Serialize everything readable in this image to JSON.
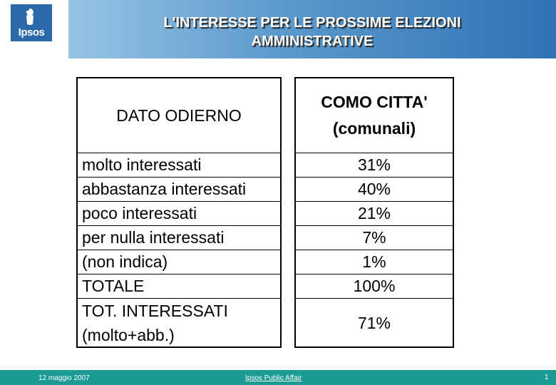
{
  "header": {
    "logo_text": "Ipsos",
    "title_line1": "L'INTERESSE PER LE PROSSIME ELEZIONI",
    "title_line2": "AMMINISTRATIVE"
  },
  "table": {
    "left_header": "DATO ODIERNO",
    "right_header_line1": "COMO CITTA'",
    "right_header_line2": "(comunali)",
    "rows": [
      {
        "label": "molto interessati",
        "value": "31%"
      },
      {
        "label": "abbastanza interessati",
        "value": "40%"
      },
      {
        "label": "poco interessati",
        "value": "21%"
      },
      {
        "label": "per nulla interessati",
        "value": "7%"
      },
      {
        "label": "(non indica)",
        "value": "1%"
      },
      {
        "label": "TOTALE",
        "value": "100%"
      }
    ],
    "last_row": {
      "label_line1": "TOT. INTERESSATI",
      "label_line2": "(molto+abb.)",
      "value": "71%"
    }
  },
  "footer": {
    "date": "12 maggio 2007",
    "center": "Ipsos Public Affair",
    "page": "1"
  },
  "colors": {
    "header_start": "#98c4e3",
    "header_end": "#2f73b5",
    "logo": "#2b6aa8",
    "footer": "#1c9a96"
  }
}
